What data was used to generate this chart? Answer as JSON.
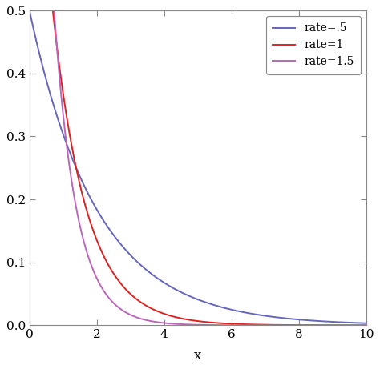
{
  "xlabel": "x",
  "xlim": [
    0,
    10
  ],
  "ylim": [
    0,
    0.5
  ],
  "x_ticks": [
    0,
    2,
    4,
    6,
    8,
    10
  ],
  "y_ticks": [
    0.0,
    0.1,
    0.2,
    0.3,
    0.4,
    0.5
  ],
  "rates": [
    0.5,
    1.0,
    1.5
  ],
  "colors": [
    "#6666bb",
    "#dd2222",
    "#bb66bb"
  ],
  "labels": [
    "rate=.5",
    "rate=1",
    "rate=1.5"
  ],
  "line_width": 1.4,
  "background_color": "#ffffff",
  "border_color": "#888888",
  "legend_loc": "upper right",
  "figsize": [
    4.74,
    4.61
  ],
  "dpi": 100
}
